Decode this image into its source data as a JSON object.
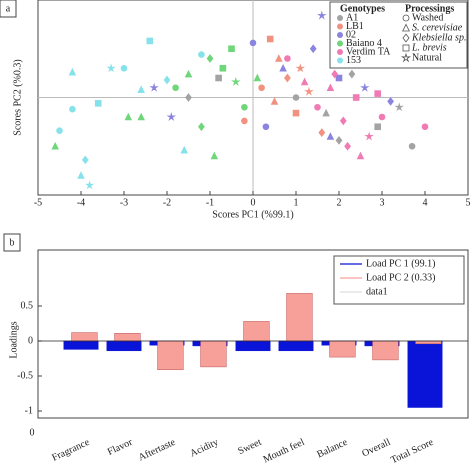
{
  "panel_labels": [
    "a",
    "b"
  ],
  "chart_data": [
    {
      "type": "scatter",
      "xlabel": "Scores PC1 (%99.1)",
      "ylabel": "Scores PC2 (%0.3)",
      "xlim": [
        -5,
        5
      ],
      "xticks": [
        -5,
        -4,
        -3,
        -2,
        -1,
        0,
        1,
        2,
        3,
        4,
        5
      ],
      "ylim": [
        -0.5,
        0.5
      ],
      "legend_title": "Genotypes",
      "markers_title": "Processings",
      "processings": [
        "Washed",
        "S. cerevisiae",
        "Klebsiella sp.",
        "L. brevis",
        "Natural"
      ],
      "processing_italic": [
        false,
        true,
        true,
        true,
        false
      ],
      "series": [
        {
          "name": "A1",
          "color": "#a3a3a3",
          "x": [
            1.0,
            1.7,
            2.3,
            2.9,
            3.4,
            3.7,
            -1.5,
            -0.8,
            2.0,
            3.3
          ],
          "values": [
            0.0,
            -0.08,
            0.12,
            -0.15,
            -0.05,
            -0.25,
            0.0,
            0.1,
            -0.22,
            0.2
          ],
          "markers": [
            0,
            1,
            2,
            3,
            4,
            0,
            2,
            3,
            2,
            0
          ]
        },
        {
          "name": "LB1",
          "color": "#f2917f",
          "x": [
            0.2,
            0.5,
            0.8,
            1.0,
            1.3,
            0.6,
            -0.2,
            1.6,
            0.4,
            1.1
          ],
          "values": [
            0.05,
            -0.02,
            0.1,
            -0.08,
            0.03,
            0.2,
            -0.12,
            -0.18,
            0.3,
            0.15
          ],
          "markers": [
            0,
            1,
            2,
            3,
            4,
            1,
            0,
            2,
            3,
            4
          ]
        },
        {
          "name": "02",
          "color": "#8a84e0",
          "x": [
            0.0,
            0.7,
            1.4,
            2.0,
            2.6,
            3.2,
            1.8,
            -1.9,
            -2.3,
            0.3,
            1.6
          ],
          "values": [
            0.28,
            0.15,
            0.25,
            0.1,
            0.05,
            -0.02,
            -0.2,
            -0.1,
            0.05,
            -0.15,
            0.42
          ],
          "markers": [
            0,
            1,
            2,
            3,
            4,
            2,
            1,
            4,
            4,
            0,
            4
          ]
        },
        {
          "name": "Baiano 4",
          "color": "#6fd67a",
          "x": [
            -1.8,
            -1.5,
            -1.0,
            -0.7,
            -0.4,
            -0.2,
            0.1,
            -1.2,
            -2.6,
            -0.5,
            -0.9,
            -2.9,
            -4.6
          ],
          "values": [
            0.05,
            0.12,
            0.2,
            0.15,
            0.08,
            -0.05,
            0.1,
            -0.15,
            -0.1,
            0.25,
            -0.3,
            -0.1,
            -0.25
          ],
          "markers": [
            0,
            1,
            2,
            3,
            4,
            0,
            1,
            2,
            1,
            3,
            1,
            1,
            1
          ]
        },
        {
          "name": "Verdim TA",
          "color": "#f07ab3",
          "x": [
            1.5,
            1.8,
            2.1,
            2.4,
            2.7,
            3.0,
            1.2,
            2.2,
            2.9,
            4.0,
            2.5,
            1.9,
            0.8
          ],
          "values": [
            -0.05,
            0.05,
            -0.12,
            0.0,
            -0.2,
            -0.1,
            0.08,
            -0.25,
            0.02,
            -0.15,
            -0.3,
            0.12,
            0.2
          ],
          "markers": [
            0,
            1,
            2,
            3,
            4,
            0,
            1,
            2,
            3,
            0,
            1,
            2,
            0
          ]
        },
        {
          "name": "153",
          "color": "#86e2ea",
          "x": [
            -4.5,
            -4.2,
            -3.9,
            -3.6,
            -3.3,
            -3.0,
            -2.6,
            -2.4,
            -2.0,
            -1.6,
            -1.2,
            -3.8,
            -4.0,
            -4.2
          ],
          "values": [
            -0.17,
            0.13,
            -0.32,
            -0.03,
            0.15,
            0.15,
            0.04,
            0.29,
            0.09,
            -0.27,
            0.22,
            -0.45,
            -0.4,
            -0.06
          ],
          "markers": [
            0,
            1,
            2,
            3,
            4,
            0,
            1,
            3,
            2,
            1,
            0,
            4,
            1,
            0
          ]
        }
      ]
    },
    {
      "type": "bar",
      "ylabel": "Loadings",
      "categories": [
        "Fragrance",
        "Flavor",
        "Aftertaste",
        "Acidity",
        "Sweet",
        "Mouth feel",
        "Balance",
        "Overall",
        "Total Score"
      ],
      "xlim": [
        0,
        10
      ],
      "xticks": [
        0
      ],
      "ylim": [
        -1.1,
        1.3
      ],
      "yticks": [
        -1,
        -0.5,
        0,
        0.5
      ],
      "series": [
        {
          "name": "Load PC 1 (99.1)",
          "color": "#0a14d8",
          "values": [
            -0.12,
            -0.14,
            -0.06,
            -0.07,
            -0.14,
            -0.14,
            -0.06,
            -0.07,
            -0.95
          ]
        },
        {
          "name": "Load PC 2 (0.33)",
          "color": "#f7a09a",
          "values": [
            0.12,
            0.11,
            -0.41,
            -0.37,
            0.28,
            0.68,
            -0.23,
            -0.27,
            -0.04
          ]
        }
      ],
      "extra_legend": [
        {
          "name": "data1",
          "color": "#c8c8c8"
        }
      ]
    }
  ]
}
